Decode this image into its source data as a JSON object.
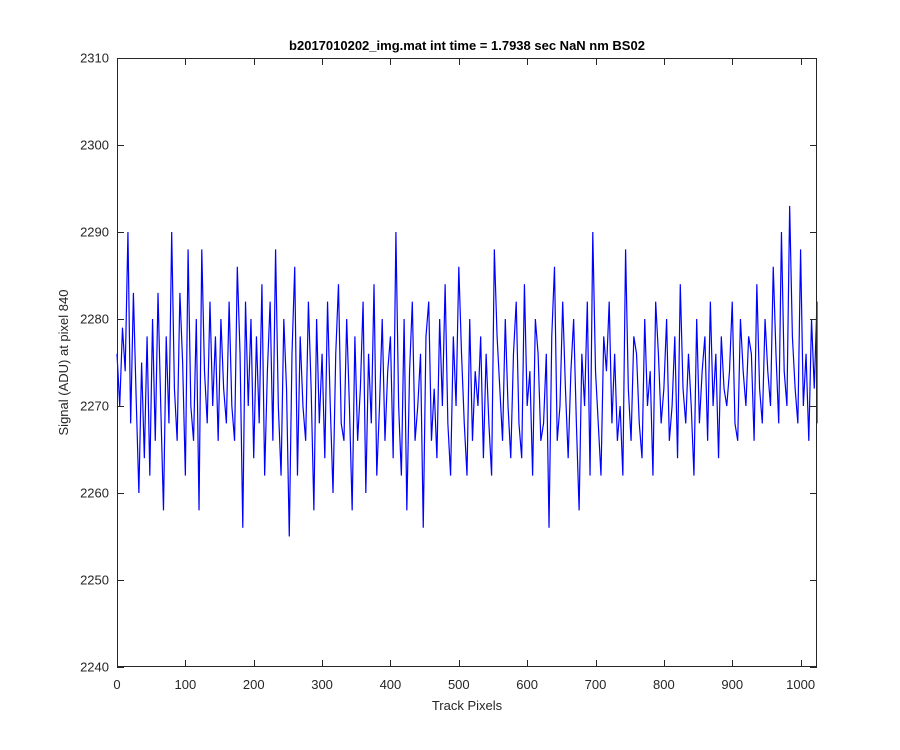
{
  "chart_data": {
    "type": "line",
    "title": "b2017010202_img.mat int time = 1.7938 sec  NaN nm BS02",
    "xlabel": "Track Pixels",
    "ylabel": "Signal (ADU) at pixel 840",
    "xlim": [
      0,
      1024
    ],
    "ylim": [
      2240,
      2310
    ],
    "xticks": [
      0,
      100,
      200,
      300,
      400,
      500,
      600,
      700,
      800,
      900,
      1000
    ],
    "yticks": [
      2240,
      2250,
      2260,
      2270,
      2280,
      2290,
      2300,
      2310
    ],
    "grid": false,
    "line_color": "#0000ff",
    "series": [
      {
        "values_start_x": 0,
        "values_step_x": 1,
        "values_are_sampled_every_n_pixels": 4,
        "values": [
          2276,
          2270,
          2279,
          2274,
          2290,
          2268,
          2283,
          2271,
          2260,
          2275,
          2264,
          2278,
          2262,
          2280,
          2266,
          2283,
          2270,
          2258,
          2278,
          2268,
          2290,
          2272,
          2266,
          2283,
          2275,
          2262,
          2288,
          2270,
          2266,
          2280,
          2258,
          2288,
          2274,
          2268,
          2282,
          2270,
          2278,
          2266,
          2280,
          2272,
          2268,
          2282,
          2270,
          2266,
          2286,
          2276,
          2256,
          2282,
          2270,
          2280,
          2264,
          2278,
          2268,
          2284,
          2262,
          2274,
          2282,
          2266,
          2288,
          2270,
          2262,
          2280,
          2272,
          2255,
          2276,
          2286,
          2262,
          2278,
          2270,
          2266,
          2282,
          2272,
          2258,
          2280,
          2268,
          2276,
          2264,
          2282,
          2270,
          2260,
          2276,
          2284,
          2268,
          2266,
          2280,
          2270,
          2258,
          2278,
          2266,
          2272,
          2282,
          2260,
          2276,
          2268,
          2284,
          2262,
          2270,
          2280,
          2266,
          2274,
          2278,
          2264,
          2290,
          2270,
          2262,
          2280,
          2258,
          2274,
          2282,
          2266,
          2270,
          2276,
          2256,
          2278,
          2282,
          2266,
          2272,
          2264,
          2280,
          2270,
          2284,
          2268,
          2262,
          2278,
          2270,
          2286,
          2276,
          2268,
          2262,
          2280,
          2266,
          2274,
          2270,
          2278,
          2264,
          2276,
          2268,
          2262,
          2288,
          2278,
          2272,
          2266,
          2280,
          2270,
          2264,
          2276,
          2282,
          2268,
          2264,
          2284,
          2270,
          2274,
          2262,
          2280,
          2276,
          2266,
          2268,
          2276,
          2256,
          2278,
          2286,
          2266,
          2270,
          2282,
          2272,
          2264,
          2274,
          2280,
          2268,
          2258,
          2276,
          2270,
          2282,
          2262,
          2290,
          2274,
          2268,
          2262,
          2278,
          2274,
          2282,
          2268,
          2276,
          2266,
          2270,
          2262,
          2288,
          2272,
          2266,
          2278,
          2276,
          2268,
          2264,
          2280,
          2270,
          2274,
          2262,
          2282,
          2276,
          2268,
          2272,
          2280,
          2266,
          2270,
          2278,
          2264,
          2284,
          2272,
          2268,
          2276,
          2270,
          2262,
          2280,
          2268,
          2274,
          2278,
          2266,
          2282,
          2270,
          2276,
          2264,
          2278,
          2272,
          2270,
          2274,
          2282,
          2268,
          2266,
          2280,
          2274,
          2270,
          2278,
          2276,
          2266,
          2284,
          2272,
          2268,
          2280,
          2274,
          2270,
          2286,
          2276,
          2268,
          2290,
          2274,
          2270,
          2293,
          2278,
          2272,
          2268,
          2288,
          2270,
          2276,
          2266,
          2280,
          2272,
          2282,
          2270,
          2276,
          2268
        ]
      }
    ]
  }
}
